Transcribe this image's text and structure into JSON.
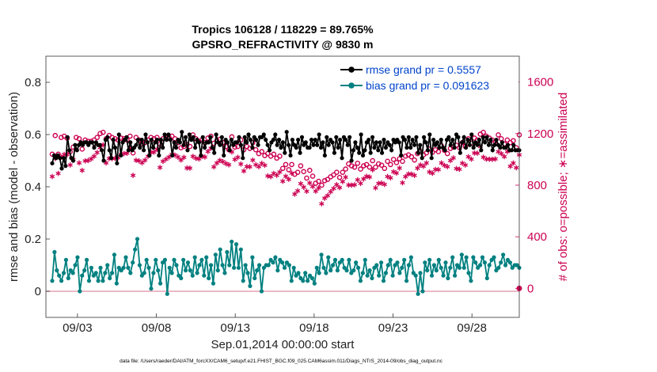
{
  "chart_data": {
    "type": "line",
    "title_line1": "Tropics 106128 / 118229 = 89.765%",
    "title_line2": "GPSRO_REFRACTIVITY @ 9830 m",
    "xlabel": "Sep.01,2014 00:00:00 start",
    "ylabel_left": "rmse and bias (model - observation)",
    "ylabel_right": "# of obs: o=possible; ∗=assimilated",
    "footer": "data file: /Users/raeder/DAI/ATM_forcXX/CAM6_setup/f.e21.FHIST_BGC.f09_025.CAM6assim.011/Diags_NTrS_2014-09/obs_diag_output.nc",
    "x_tick_labels": [
      "09/03",
      "09/08",
      "09/13",
      "09/18",
      "09/23",
      "09/28"
    ],
    "x_tick_days": [
      3,
      8,
      13,
      18,
      23,
      28
    ],
    "x_range_days": [
      1.0,
      31.0
    ],
    "y_left_range": [
      -0.1,
      0.9
    ],
    "y_left_ticks": [
      0,
      0.2,
      0.4,
      0.6,
      0.8
    ],
    "y_left_tick_labels": [
      "0",
      "0.2",
      "0.4",
      "0.6",
      "0.8"
    ],
    "y_right_range": [
      -225,
      1800
    ],
    "y_right_ticks": [
      0,
      400,
      800,
      1200,
      1600
    ],
    "y_right_tick_labels": [
      "0",
      "400",
      "800",
      "1200",
      "1600"
    ],
    "legend_position": "top-right",
    "colors": {
      "rmse": "#000000",
      "bias": "#008080",
      "possible": "#cc0052",
      "legend_text": "#0044cc",
      "zero_line": "#e6a0b4",
      "right_axis": "#cc0052"
    },
    "series": [
      {
        "name": "rmse grand pr = 0.5557",
        "values": [
          0.49,
          0.52,
          0.51,
          0.52,
          0.51,
          0.47,
          0.51,
          0.48,
          0.59,
          0.54,
          0.51,
          0.5,
          0.56,
          0.54,
          0.56,
          0.57,
          0.56,
          0.57,
          0.57,
          0.56,
          0.57,
          0.57,
          0.55,
          0.57,
          0.56,
          0.56,
          0.54,
          0.5,
          0.58,
          0.59,
          0.54,
          0.51,
          0.58,
          0.55,
          0.49,
          0.6,
          0.52,
          0.57,
          0.58,
          0.59,
          0.54,
          0.57,
          0.54,
          0.55,
          0.56,
          0.58,
          0.55,
          0.58,
          0.54,
          0.6,
          0.57,
          0.52,
          0.58,
          0.55,
          0.57,
          0.58,
          0.52,
          0.58,
          0.55,
          0.6,
          0.58,
          0.6,
          0.58,
          0.52,
          0.57,
          0.55,
          0.58,
          0.57,
          0.61,
          0.56,
          0.59,
          0.54,
          0.6,
          0.58,
          0.59,
          0.55,
          0.58,
          0.57,
          0.52,
          0.59,
          0.55,
          0.57,
          0.57,
          0.59,
          0.55,
          0.53,
          0.6,
          0.57,
          0.56,
          0.59,
          0.52,
          0.58,
          0.57,
          0.54,
          0.58,
          0.56,
          0.57,
          0.57,
          0.59,
          0.56,
          0.51,
          0.59,
          0.57,
          0.6,
          0.58,
          0.55,
          0.59,
          0.58,
          0.56,
          0.59,
          0.59,
          0.6,
          0.58,
          0.56,
          0.54,
          0.57,
          0.58,
          0.6,
          0.56,
          0.58,
          0.55,
          0.57,
          0.53,
          0.61,
          0.56,
          0.52,
          0.58,
          0.56,
          0.55,
          0.58,
          0.53,
          0.59,
          0.56,
          0.57,
          0.55,
          0.55,
          0.58,
          0.56,
          0.58,
          0.56,
          0.6,
          0.55,
          0.57,
          0.52,
          0.59,
          0.56,
          0.58,
          0.57,
          0.53,
          0.59,
          0.55,
          0.58,
          0.51,
          0.59,
          0.58,
          0.56,
          0.59,
          0.5,
          0.54,
          0.57,
          0.55,
          0.53,
          0.6,
          0.52,
          0.54,
          0.57,
          0.58,
          0.53,
          0.59,
          0.55,
          0.57,
          0.54,
          0.57,
          0.53,
          0.58,
          0.55,
          0.57,
          0.56,
          0.54,
          0.58,
          0.57,
          0.58,
          0.57,
          0.52,
          0.59,
          0.58,
          0.55,
          0.59,
          0.55,
          0.58,
          0.56,
          0.59,
          0.53,
          0.56,
          0.51,
          0.59,
          0.57,
          0.54,
          0.6,
          0.51,
          0.58,
          0.56,
          0.57,
          0.55,
          0.58,
          0.55,
          0.54,
          0.58,
          0.59,
          0.56,
          0.58,
          0.55,
          0.6,
          0.59,
          0.53,
          0.57,
          0.59,
          0.55,
          0.58,
          0.56,
          0.6,
          0.55,
          0.57,
          0.56,
          0.58,
          0.54,
          0.59,
          0.57,
          0.59,
          0.56,
          0.58,
          0.54,
          0.56,
          0.58,
          0.56,
          0.55,
          0.57,
          0.55,
          0.55,
          0.56,
          0.54,
          0.54,
          0.56,
          0.54,
          0.54,
          0.54
        ]
      },
      {
        "name": "bias grand pr = 0.091623",
        "values": [
          0.04,
          0.15,
          0.08,
          0.06,
          0.04,
          0.07,
          0.12,
          0.05,
          0.08,
          0.07,
          0.1,
          0.13,
          0.0,
          0.06,
          0.08,
          0.12,
          0.04,
          0.09,
          0.06,
          0.07,
          0.04,
          0.09,
          0.04,
          0.07,
          0.1,
          0.05,
          0.07,
          0.14,
          0.03,
          0.09,
          0.08,
          0.09,
          0.13,
          0.09,
          0.07,
          0.11,
          0.16,
          0.2,
          0.1,
          0.06,
          0.07,
          0.12,
          0.09,
          0.01,
          0.07,
          0.12,
          0.08,
          0.03,
          0.11,
          0.12,
          -0.01,
          0.09,
          0.07,
          0.12,
          0.1,
          0.06,
          0.05,
          0.12,
          0.08,
          0.11,
          0.08,
          0.06,
          0.13,
          0.07,
          0.1,
          0.12,
          0.06,
          0.13,
          0.05,
          0.1,
          0.03,
          0.14,
          0.08,
          0.16,
          0.1,
          0.07,
          0.15,
          0.1,
          0.19,
          0.09,
          0.18,
          0.09,
          0.16,
          0.04,
          0.1,
          0.07,
          0.02,
          0.13,
          0.05,
          0.08,
          0.1,
          0.0,
          0.09,
          0.1,
          0.1,
          0.12,
          0.11,
          0.13,
          0.08,
          0.12,
          0.11,
          0.09,
          0.11,
          0.1,
          0.04,
          0.09,
          0.06,
          0.07,
          0.05,
          0.04,
          0.07,
          0.04,
          0.06,
          0.05,
          0.03,
          0.09,
          0.07,
          0.14,
          0.09,
          0.07,
          0.13,
          0.08,
          0.1,
          0.12,
          0.08,
          0.11,
          0.12,
          0.09,
          0.08,
          0.12,
          0.07,
          0.08,
          0.11,
          0.09,
          0.04,
          0.07,
          0.12,
          0.06,
          0.08,
          0.05,
          0.09,
          0.1,
          0.06,
          0.11,
          0.04,
          0.07,
          0.1,
          0.12,
          0.06,
          0.1,
          0.11,
          0.07,
          0.09,
          0.12,
          0.04,
          0.1,
          0.13,
          0.07,
          0.06,
          -0.01,
          0.07,
          0.0,
          0.11,
          0.08,
          0.12,
          0.06,
          0.1,
          0.08,
          0.12,
          0.09,
          0.06,
          0.11,
          0.05,
          0.09,
          0.13,
          0.06,
          0.1,
          0.09,
          0.14,
          0.09,
          0.13,
          0.07,
          0.04,
          0.13,
          0.11,
          0.09,
          0.1,
          0.13,
          0.11,
          0.05,
          0.1,
          0.12,
          0.13,
          0.08,
          0.09,
          0.11,
          0.14,
          0.1,
          0.12,
          0.11,
          0.09,
          0.1,
          0.1,
          0.09
        ]
      },
      {
        "name": "possible",
        "values": [
          1040,
          1185,
          1040,
          1170,
          1180,
          1165,
          1060,
          1095,
          1170,
          1160,
          1080,
          1150,
          1140,
          1140,
          1150,
          1170,
          1200,
          1210,
          1160,
          1185,
          1170,
          1160,
          1150,
          1165,
          1160,
          1150,
          1180,
          1050,
          1170,
          1150,
          1120,
          1130,
          1150,
          1170,
          1160,
          1170,
          1120,
          1160,
          1165,
          1170,
          1180,
          1160,
          1130,
          1090,
          1100,
          1115,
          1100,
          1190,
          1160,
          1140,
          1150,
          1130,
          1165,
          1180,
          1125,
          1145,
          1155,
          1130,
          1100,
          1075,
          1175,
          1095,
          1100,
          1150,
          1075,
          1100,
          1085,
          1130,
          1075,
          1045,
          1060,
          1030,
          1045,
          1025,
          1040,
          1010,
          1025,
          930,
          960,
          920,
          960,
          885,
          900,
          950,
          905,
          855,
          915,
          870,
          815,
          830,
          800,
          835,
          845,
          865,
          880,
          900,
          860,
          900,
          925,
          965,
          950,
          940,
          970,
          925,
          950,
          960,
          940,
          990,
          940,
          965,
          955,
          930,
          985,
          960,
          1000,
          975,
          1005,
          985,
          1025,
          1035,
          1020,
          995,
          1045,
          1060,
          1035,
          1050,
          1080,
          1055,
          1075,
          1060,
          1105,
          1070,
          1045,
          1085,
          1095,
          1110,
          1090,
          1130,
          1100,
          1160,
          1125,
          1165,
          1150,
          1195,
          1210,
          1180,
          1165,
          1150,
          1140,
          1190,
          1160,
          1120,
          1150,
          1130,
          1145,
          1090,
          1190
        ]
      }
    ]
  }
}
